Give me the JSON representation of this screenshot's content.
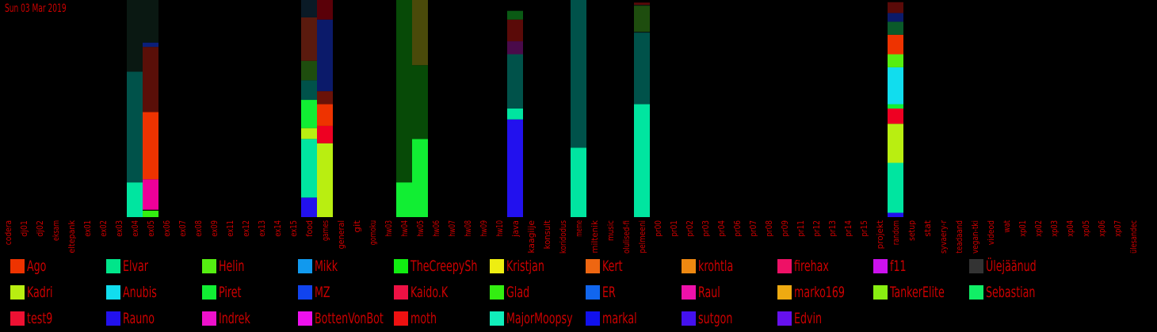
{
  "date": "Sun 03 Mar 2019",
  "chart_data": {
    "type": "bar",
    "stacked": true,
    "normalized": true,
    "ylim": [
      0,
      1
    ],
    "categories": [
      "codera",
      "dj01",
      "dj02",
      "eksam",
      "eltepank",
      "ex01",
      "ex02",
      "ex03",
      "ex04",
      "ex05",
      "ex06",
      "ex07",
      "ex08",
      "ex09",
      "ex11",
      "ex12",
      "ex13",
      "ex14",
      "ex15",
      "food",
      "games",
      "general",
      "git",
      "gomoku",
      "hw03",
      "hw04",
      "hw05",
      "hw06",
      "hw07",
      "hw08",
      "hw09",
      "hw10",
      "java",
      "kaagiije",
      "konsult",
      "koridodus",
      "meme",
      "miltenik",
      "music",
      "olulised-fi",
      "pelmeeni",
      "pr00",
      "pr01",
      "pr02",
      "pr03",
      "pr04",
      "pr06",
      "pr07",
      "pr08",
      "pr09",
      "pr11",
      "pr12",
      "pr13",
      "pr14",
      "pr15",
      "projekt",
      "random",
      "setup",
      "stat",
      "syvaery-r",
      "teadaand",
      "vegan-tki",
      "videod",
      "wat",
      "xp01",
      "xp02",
      "xp03",
      "xp04",
      "xp05",
      "xp06",
      "xp07",
      "ülesandec"
    ],
    "bars": [
      {
        "category": "ex04",
        "segments": [
          {
            "color": "#00e5a0",
            "value": 0.16
          },
          {
            "color": "#00524a",
            "value": 0.51
          },
          {
            "color": "#0a1812",
            "value": 0.33
          }
        ]
      },
      {
        "category": "ex05",
        "segments": [
          {
            "color": "#33ee11",
            "value": 0.03
          },
          {
            "color": "#000000",
            "value": 0.004
          },
          {
            "color": "#ee0099",
            "value": 0.14
          },
          {
            "color": "#ee3300",
            "value": 0.31
          },
          {
            "color": "#5a0f08",
            "value": 0.3
          },
          {
            "color": "#0b1f7a",
            "value": 0.02
          },
          {
            "color": "#0a1812",
            "value": 0.196
          }
        ]
      },
      {
        "category": "food",
        "segments": [
          {
            "color": "#2211ee",
            "value": 0.09
          },
          {
            "color": "#00e5a0",
            "value": 0.27
          },
          {
            "color": "#b9ee11",
            "value": 0.05
          },
          {
            "color": "#11ee33",
            "value": 0.13
          },
          {
            "color": "#00524a",
            "value": 0.09
          },
          {
            "color": "#1e4d0e",
            "value": 0.09
          },
          {
            "color": "#5a1a0e",
            "value": 0.2
          },
          {
            "color": "#0a1a26",
            "value": 0.08
          }
        ]
      },
      {
        "category": "games",
        "segments": [
          {
            "color": "#b9ee11",
            "value": 0.34
          },
          {
            "color": "#ee0022",
            "value": 0.08
          },
          {
            "color": "#ee3300",
            "value": 0.1
          },
          {
            "color": "#6a1208",
            "value": 0.06
          },
          {
            "color": "#0b1a6a",
            "value": 0.33
          },
          {
            "color": "#5a0008",
            "value": 0.09
          }
        ]
      },
      {
        "category": "hw04",
        "segments": [
          {
            "color": "#11ee33",
            "value": 0.16
          },
          {
            "color": "#074a07",
            "value": 0.84
          }
        ]
      },
      {
        "category": "hw05",
        "segments": [
          {
            "color": "#11ee33",
            "value": 0.36
          },
          {
            "color": "#074a07",
            "value": 0.34
          },
          {
            "color": "#4a4a0a",
            "value": 0.3
          }
        ]
      },
      {
        "category": "java",
        "segments": [
          {
            "color": "#2211ee",
            "value": 0.45
          },
          {
            "color": "#00e5a0",
            "value": 0.05
          },
          {
            "color": "#00524a",
            "value": 0.25
          },
          {
            "color": "#4a0a4a",
            "value": 0.06
          },
          {
            "color": "#5a0a08",
            "value": 0.1
          },
          {
            "color": "#0a5a14",
            "value": 0.04
          }
        ]
      },
      {
        "category": "meme",
        "segments": [
          {
            "color": "#00e5a0",
            "value": 0.32
          },
          {
            "color": "#00524a",
            "value": 0.68
          }
        ]
      },
      {
        "category": "pelmeeni",
        "segments": [
          {
            "color": "#00e5a0",
            "value": 0.52
          },
          {
            "color": "#00524a",
            "value": 0.33
          },
          {
            "color": "#0a1812",
            "value": 0.004
          },
          {
            "color": "#1e4d0e",
            "value": 0.12
          },
          {
            "color": "#0a1812",
            "value": 0.004
          },
          {
            "color": "#5a0a08",
            "value": 0.01
          }
        ]
      },
      {
        "category": "random",
        "segments": [
          {
            "color": "#2211ee",
            "value": 0.02
          },
          {
            "color": "#00e5a0",
            "value": 0.23
          },
          {
            "color": "#b9ee11",
            "value": 0.18
          },
          {
            "color": "#ee0022",
            "value": 0.07
          },
          {
            "color": "#11ee33",
            "value": 0.02
          },
          {
            "color": "#11ddee",
            "value": 0.17
          },
          {
            "color": "#55ee11",
            "value": 0.06
          },
          {
            "color": "#ee3300",
            "value": 0.09
          },
          {
            "color": "#0a5a2a",
            "value": 0.06
          },
          {
            "color": "#0b1a6a",
            "value": 0.04
          },
          {
            "color": "#5a0a08",
            "value": 0.05
          }
        ]
      }
    ],
    "legend": [
      {
        "name": "Ago",
        "color": "#ee3300"
      },
      {
        "name": "Elvar",
        "color": "#00e58a"
      },
      {
        "name": "Helin",
        "color": "#55ee11"
      },
      {
        "name": "Mikk",
        "color": "#1199ee"
      },
      {
        "name": "TheCreepySh",
        "color": "#11ee11"
      },
      {
        "name": "Kristjan",
        "color": "#eeee11"
      },
      {
        "name": "Kert",
        "color": "#ee6611"
      },
      {
        "name": "krohtla",
        "color": "#ee8811"
      },
      {
        "name": "firehax",
        "color": "#ee1166"
      },
      {
        "name": "f11",
        "color": "#cc11ee"
      },
      {
        "name": "Ülejäänud",
        "color": "#333333"
      },
      {
        "name": "Kadri",
        "color": "#b9ee11"
      },
      {
        "name": "Anubis",
        "color": "#11ddee"
      },
      {
        "name": "Piret",
        "color": "#11ee33"
      },
      {
        "name": "MZ",
        "color": "#1144ee"
      },
      {
        "name": "Kaido.K",
        "color": "#ee1144"
      },
      {
        "name": "Glad",
        "color": "#33ee11"
      },
      {
        "name": "ER",
        "color": "#1166ee"
      },
      {
        "name": "Raul",
        "color": "#ee11aa"
      },
      {
        "name": "marko169",
        "color": "#eeaa11"
      },
      {
        "name": "TankerElite",
        "color": "#88ee11"
      },
      {
        "name": "Sebastian",
        "color": "#11ee66"
      },
      {
        "name": "test9",
        "color": "#ee1133"
      },
      {
        "name": "Rauno",
        "color": "#2211ee"
      },
      {
        "name": "Indrek",
        "color": "#ee11cc"
      },
      {
        "name": "BottenVonBot",
        "color": "#ee11ee"
      },
      {
        "name": "moth",
        "color": "#ee1111"
      },
      {
        "name": "MajorMoopsy",
        "color": "#11eebb"
      },
      {
        "name": "markal",
        "color": "#1111ee"
      },
      {
        "name": "sutgon",
        "color": "#4411ee"
      },
      {
        "name": "Edvin",
        "color": "#6611ee"
      }
    ]
  }
}
